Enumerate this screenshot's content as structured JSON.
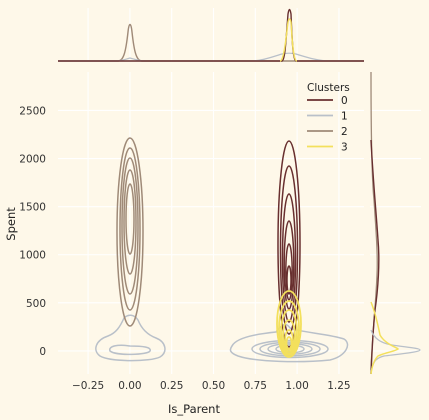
{
  "chart_data": {
    "type": "jointplot-kde",
    "xlabel": "Is_Parent",
    "ylabel": "Spent",
    "xlim": [
      -0.43,
      1.4
    ],
    "ylim": [
      -240,
      2900
    ],
    "x_ticks": [
      -0.25,
      0.0,
      0.25,
      0.5,
      0.75,
      1.0,
      1.25
    ],
    "x_tick_labels": [
      "−0.25",
      "0.00",
      "0.25",
      "0.50",
      "0.75",
      "1.00",
      "1.25"
    ],
    "y_ticks": [
      0,
      500,
      1000,
      1500,
      2000,
      2500
    ],
    "y_tick_labels": [
      "0",
      "500",
      "1000",
      "1500",
      "2000",
      "2500"
    ],
    "grid": true,
    "legend": {
      "title": "Clusters",
      "position": "top-right",
      "entries": [
        "0",
        "1",
        "2",
        "3"
      ]
    },
    "series": [
      {
        "key": "0",
        "color": "#682F2F",
        "is_parent": [
          1
        ],
        "spent_center": 1150,
        "spent_spread": 680
      },
      {
        "key": "1",
        "color": "#B9C0C9",
        "is_parent": [
          0,
          1
        ],
        "spent_center": 60,
        "spent_spread": 120
      },
      {
        "key": "2",
        "color": "#9F8A78",
        "is_parent": [
          0
        ],
        "spent_center": 1250,
        "spent_spread": 760
      },
      {
        "key": "3",
        "color": "#F3E05C",
        "is_parent": [
          1
        ],
        "spent_center": 260,
        "spent_spread": 230
      }
    ]
  }
}
